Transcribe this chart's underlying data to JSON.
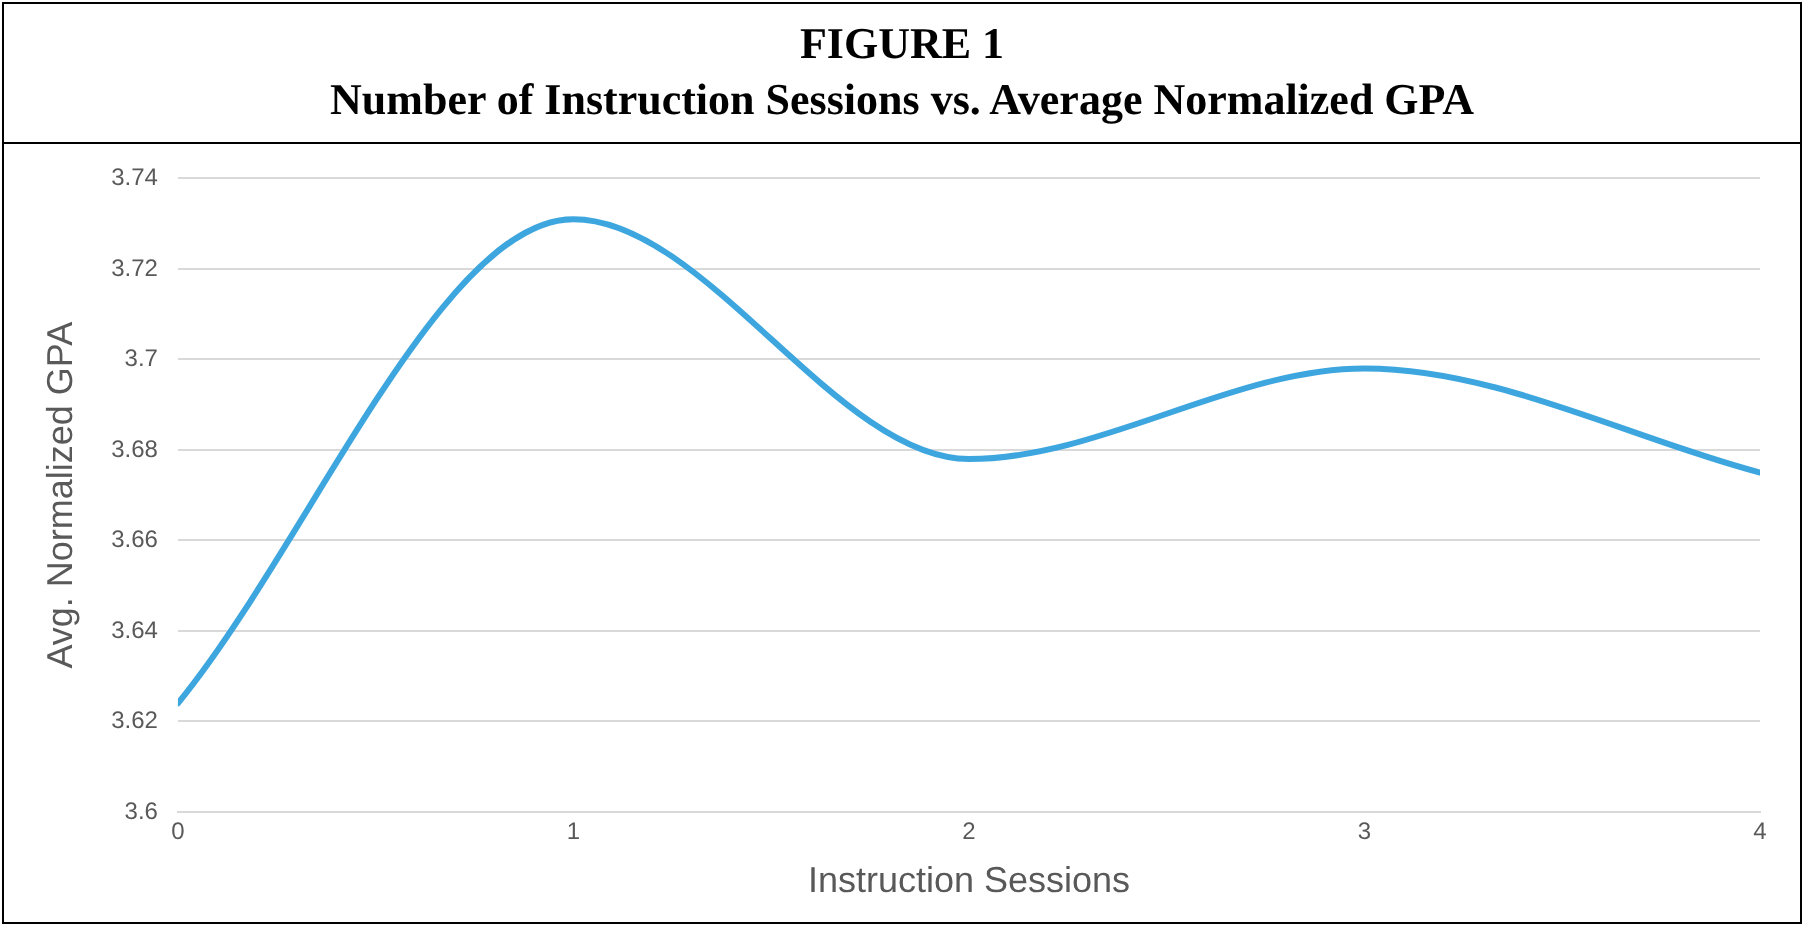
{
  "chart_data": {
    "type": "line",
    "title": "FIGURE 1",
    "subtitle": "Number of Instruction Sessions vs. Average Normalized GPA",
    "xlabel": "Instruction Sessions",
    "ylabel": "Avg. Normalized GPA",
    "x": [
      0,
      1,
      2,
      3,
      4
    ],
    "series": [
      {
        "color": "#3ea6de",
        "values": [
          3.624,
          3.731,
          3.678,
          3.698,
          3.675
        ]
      }
    ],
    "xlim": [
      0,
      4
    ],
    "xticks": [
      0,
      1,
      2,
      3,
      4
    ],
    "ylim": [
      3.6,
      3.74
    ],
    "yticks": [
      3.6,
      3.62,
      3.64,
      3.66,
      3.68,
      3.7,
      3.72,
      3.74
    ],
    "grid": "y",
    "legend": false,
    "marker": "none",
    "line_style": "solid"
  }
}
